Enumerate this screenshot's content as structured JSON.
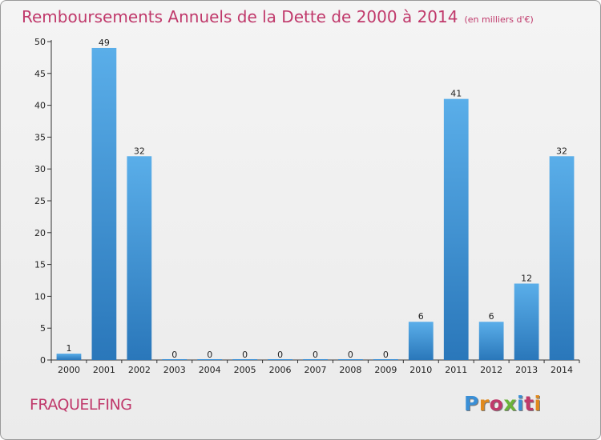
{
  "page": {
    "title": "Remboursements Annuels de la Dette de 2000 à 2014",
    "unit": "(en milliers d'€)",
    "commune": "FRAQUELFING",
    "logo_text": "Proxiti"
  },
  "chart_data": {
    "type": "bar",
    "title": "Remboursements Annuels de la Dette de 2000 à 2014",
    "subtitle": "(en milliers d'€)",
    "categories": [
      "2000",
      "2001",
      "2002",
      "2003",
      "2004",
      "2005",
      "2006",
      "2007",
      "2008",
      "2009",
      "2010",
      "2011",
      "2012",
      "2013",
      "2014"
    ],
    "values": [
      1,
      49,
      32,
      0,
      0,
      0,
      0,
      0,
      0,
      0,
      6,
      41,
      6,
      12,
      32
    ],
    "data_labels": [
      "1",
      "49",
      "32",
      "0",
      "0",
      "0",
      "0",
      "0",
      "0",
      "0",
      "6",
      "41",
      "6",
      "12",
      "32"
    ],
    "ylim": [
      0,
      50
    ],
    "yticks": [
      0,
      5,
      10,
      15,
      20,
      25,
      30,
      35,
      40,
      45,
      50
    ],
    "xlabel": "",
    "ylabel": "",
    "grid": false,
    "bar_color": "#3a8fd6"
  },
  "logo_colors": [
    "#3a8fd6",
    "#e08a1e",
    "#c0396b",
    "#6bb33a",
    "#3a8fd6",
    "#c0396b",
    "#e08a1e"
  ]
}
